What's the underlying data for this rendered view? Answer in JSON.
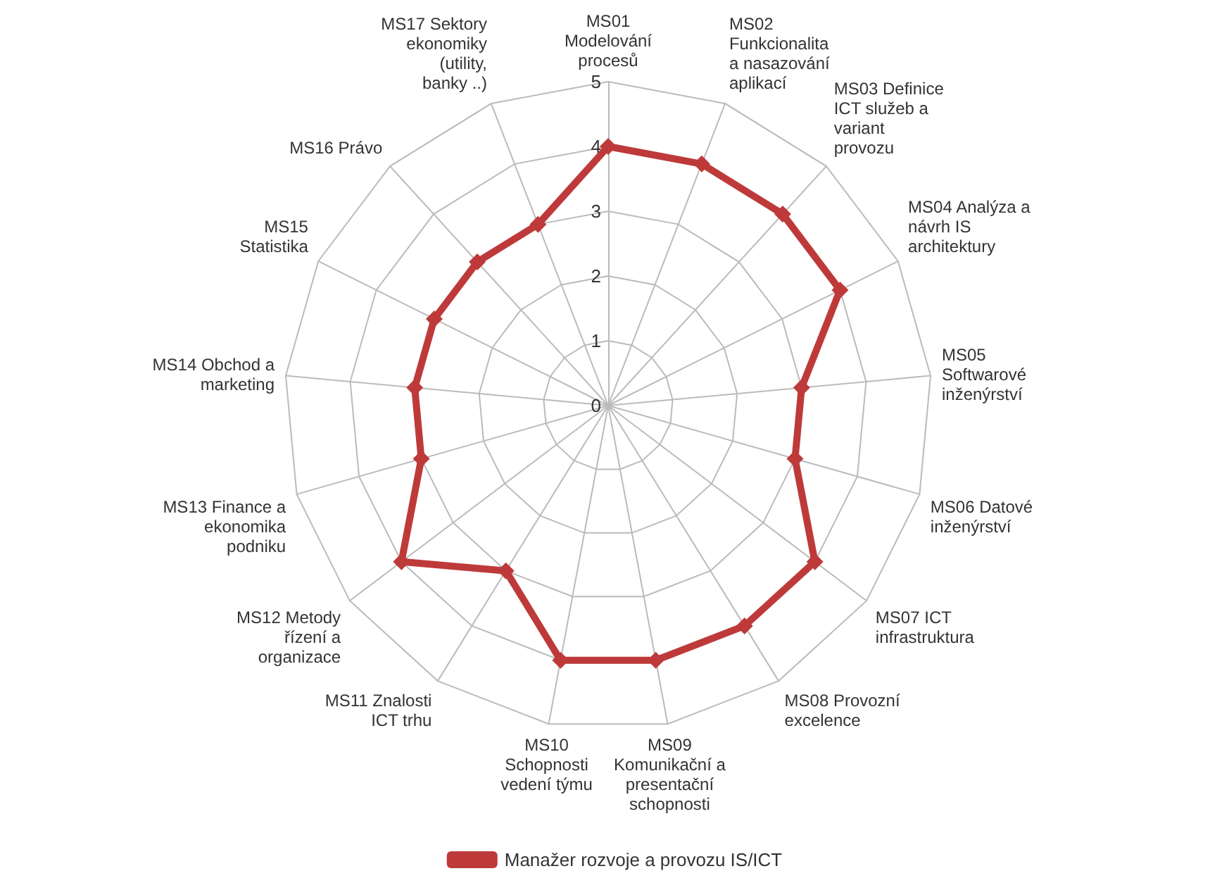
{
  "chart_data": {
    "type": "radar",
    "categories": [
      "MS01 Modelování procesů",
      "MS02 Funkcionalita a nasazování aplikací",
      "MS03 Definice ICT služeb a variant provozu",
      "MS04 Analýza a návrh IS architektury",
      "MS05 Softwarové inženýrství",
      "MS06 Datové inženýrství",
      "MS07 ICT infrastruktura",
      "MS08 Provozní excelence",
      "MS09 Komunikační a presentační schopnosti",
      "MS10 Schopnosti vedení týmu",
      "MS11 Znalosti ICT trhu",
      "MS12 Metody řízení a organizace",
      "MS13 Finance a ekonomika podniku",
      "MS14 Obchod a marketing",
      "MS15 Statistika",
      "MS16 Právo",
      "MS17 Sektory ekonomiky (utility, banky ..)"
    ],
    "series": [
      {
        "name": "Manažer rozvoje a provozu IS/ICT",
        "color": "#be3a3a",
        "values": [
          4,
          4,
          4,
          4,
          3,
          3,
          4,
          4,
          4,
          4,
          3,
          4,
          3,
          3,
          3,
          3,
          3
        ]
      }
    ],
    "ylim": [
      0,
      5
    ],
    "yticks": [
      0,
      1,
      2,
      3,
      4,
      5
    ],
    "grid": true,
    "legend": "bottom",
    "marker": "diamond",
    "line_style": "solid"
  }
}
